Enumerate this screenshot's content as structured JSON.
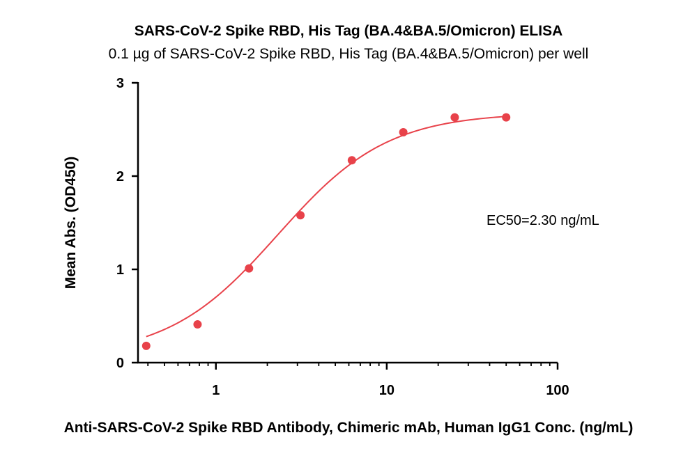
{
  "chart_data": {
    "type": "scatter",
    "title": "SARS-CoV-2 Spike RBD, His Tag (BA.4&BA.5/Omicron) ELISA",
    "subtitle": "0.1 µg of SARS-CoV-2 Spike RBD, His Tag (BA.4&BA.5/Omicron) per well",
    "xlabel": "Anti-SARS-CoV-2 Spike RBD Antibody, Chimeric mAb, Human IgG1 Conc. (ng/mL)",
    "ylabel": "Mean Abs. (OD450)",
    "xscale": "log",
    "xlim": [
      0.35,
      100
    ],
    "ylim": [
      0,
      3
    ],
    "xticks": [
      1,
      10,
      100
    ],
    "xtick_labels": [
      "1",
      "10",
      "100"
    ],
    "yticks": [
      0,
      1,
      2,
      3
    ],
    "ytick_labels": [
      "0",
      "1",
      "2",
      "3"
    ],
    "grid": false,
    "series": [
      {
        "color": "#e8424a",
        "x": [
          0.391,
          0.781,
          1.563,
          3.125,
          6.25,
          12.5,
          25,
          50
        ],
        "y": [
          0.18,
          0.41,
          1.01,
          1.58,
          2.17,
          2.47,
          2.63,
          2.63
        ],
        "fit": "4PL sigmoid"
      }
    ],
    "annotations": [
      {
        "text": "EC50=2.30 ng/mL"
      }
    ]
  }
}
